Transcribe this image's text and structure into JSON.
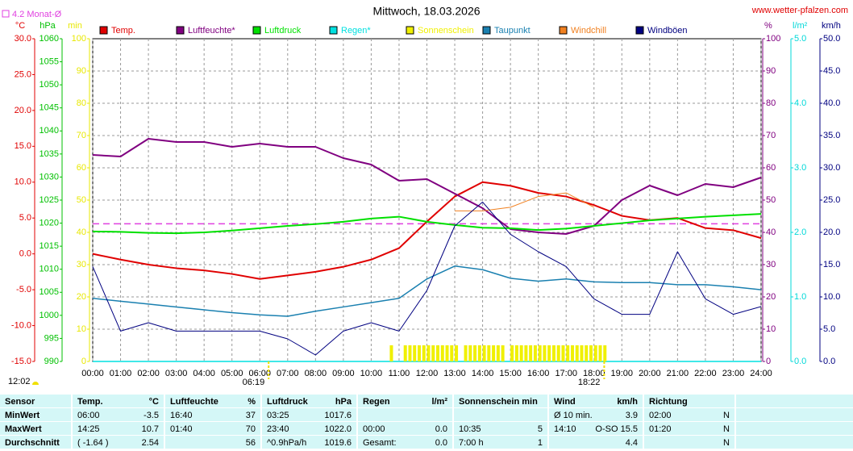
{
  "chart_data": {
    "type": "line",
    "title": "Mittwoch, 18.03.2026",
    "source": "www.wetter-pfalzen.com",
    "daylength": "12:02",
    "sunrise": {
      "value": 379,
      "label": "06:19"
    },
    "sunset": {
      "value": 1102,
      "label": "18:22"
    },
    "reference": {
      "value": 4.2,
      "label": "4.2 Monat-Ø",
      "color": "#e040e0",
      "axis": 0
    },
    "xlim": [
      0,
      1440
    ],
    "xticks": [
      {
        "value": 0,
        "label": "00:00"
      },
      {
        "value": 60,
        "label": "01:00"
      },
      {
        "value": 120,
        "label": "02:00"
      },
      {
        "value": 180,
        "label": "03:00"
      },
      {
        "value": 240,
        "label": "04:00"
      },
      {
        "value": 300,
        "label": "05:00"
      },
      {
        "value": 360,
        "label": "06:00"
      },
      {
        "value": 420,
        "label": "07:00"
      },
      {
        "value": 480,
        "label": "08:00"
      },
      {
        "value": 540,
        "label": "09:00"
      },
      {
        "value": 600,
        "label": "10:00"
      },
      {
        "value": 660,
        "label": "11:00"
      },
      {
        "value": 720,
        "label": "12:00"
      },
      {
        "value": 780,
        "label": "13:00"
      },
      {
        "value": 840,
        "label": "14:00"
      },
      {
        "value": 900,
        "label": "15:00"
      },
      {
        "value": 960,
        "label": "16:00"
      },
      {
        "value": 1020,
        "label": "17:00"
      },
      {
        "value": 1080,
        "label": "18:00"
      },
      {
        "value": 1140,
        "label": "19:00"
      },
      {
        "value": 1200,
        "label": "20:00"
      },
      {
        "value": 1260,
        "label": "21:00"
      },
      {
        "value": 1320,
        "label": "22:00"
      },
      {
        "value": 1380,
        "label": "23:00"
      },
      {
        "value": 1440,
        "label": "24:00"
      }
    ],
    "grid": true,
    "axes": [
      {
        "label": "°C",
        "color": "#e00000",
        "lim": [
          -15,
          30
        ],
        "ticks": [
          {
            "value": -15,
            "label": "-15.0"
          },
          {
            "value": -10,
            "label": "-10.0"
          },
          {
            "value": -5,
            "label": "-5.0"
          },
          {
            "value": 0,
            "label": "0.0"
          },
          {
            "value": 5,
            "label": "5.0"
          },
          {
            "value": 10,
            "label": "10.0"
          },
          {
            "value": 15,
            "label": "15.0"
          },
          {
            "value": 20,
            "label": "20.0"
          },
          {
            "value": 25,
            "label": "25.0"
          },
          {
            "value": 30,
            "label": "30.0"
          }
        ]
      },
      {
        "label": "hPa",
        "color": "#00c000",
        "lim": [
          990,
          1060
        ],
        "ticks": [
          990,
          995,
          1000,
          1005,
          1010,
          1015,
          1020,
          1025,
          1030,
          1035,
          1040,
          1045,
          1050,
          1055,
          1060
        ]
      },
      {
        "label": "min",
        "color": "#e8e800",
        "lim": [
          0,
          100
        ],
        "ticks": [
          0,
          10,
          20,
          30,
          40,
          50,
          60,
          70,
          80,
          90,
          100
        ],
        "grid": true
      },
      {
        "label": "%",
        "color": "#800080",
        "lim": [
          0,
          100
        ],
        "ticks": [
          0,
          10,
          20,
          30,
          40,
          50,
          60,
          70,
          80,
          90,
          100
        ]
      },
      {
        "label": "l/m²",
        "color": "#00d8d8",
        "lim": [
          0,
          5
        ],
        "ticks": [
          {
            "value": 0,
            "label": "0.0"
          },
          {
            "value": 1,
            "label": "1.0"
          },
          {
            "value": 2,
            "label": "2.0"
          },
          {
            "value": 3,
            "label": "3.0"
          },
          {
            "value": 4,
            "label": "4.0"
          },
          {
            "value": 5,
            "label": "5.0"
          }
        ]
      },
      {
        "label": "km/h",
        "color": "#000080",
        "lim": [
          0,
          50
        ],
        "ticks": [
          {
            "value": 0,
            "label": "0.0"
          },
          {
            "value": 5,
            "label": "5.0"
          },
          {
            "value": 10,
            "label": "10.0"
          },
          {
            "value": 15,
            "label": "15.0"
          },
          {
            "value": 20,
            "label": "20.0"
          },
          {
            "value": 25,
            "label": "25.0"
          },
          {
            "value": 30,
            "label": "30.0"
          },
          {
            "value": 35,
            "label": "35.0"
          },
          {
            "value": 40,
            "label": "40.0"
          },
          {
            "value": 45,
            "label": "45.0"
          },
          {
            "value": 50,
            "label": "50.0"
          }
        ]
      }
    ],
    "x": [
      0,
      60,
      120,
      180,
      240,
      300,
      360,
      420,
      480,
      540,
      600,
      660,
      720,
      780,
      840,
      900,
      960,
      1020,
      1080,
      1140,
      1200,
      1260,
      1320,
      1380,
      1440
    ],
    "series": [
      {
        "name": "Temp.",
        "color": "#e00000",
        "axis": 0,
        "values": [
          0,
          -0.8,
          -1.5,
          -2,
          -2.3,
          -2.8,
          -3.5,
          -3,
          -2.5,
          -1.8,
          -0.8,
          0.8,
          4.5,
          8,
          10,
          9.5,
          8.5,
          8,
          6.8,
          5.3,
          4.7,
          5,
          3.6,
          3.3,
          2.2
        ]
      },
      {
        "name": "Luftfeuchte*",
        "color": "#800080",
        "axis": 3,
        "values": [
          64,
          63.5,
          69,
          68,
          68,
          66.5,
          67.5,
          66.5,
          66.5,
          63,
          61,
          56,
          56.5,
          52,
          47.5,
          41,
          40,
          39.5,
          42,
          50,
          54.5,
          51.5,
          55,
          54,
          57
        ]
      },
      {
        "name": "Luftdruck",
        "color": "#00e000",
        "axis": 1,
        "values": [
          1018.2,
          1018.1,
          1017.9,
          1017.8,
          1018,
          1018.4,
          1018.9,
          1019.4,
          1019.8,
          1020.3,
          1021,
          1021.4,
          1020.3,
          1019.6,
          1019,
          1018.9,
          1018.5,
          1018.8,
          1019.4,
          1020,
          1020.6,
          1021,
          1021.4,
          1021.7,
          1022
        ]
      },
      {
        "name": "Regen*",
        "color": "#00e0e0",
        "axis": 4,
        "values": [
          0,
          0,
          0,
          0,
          0,
          0,
          0,
          0,
          0,
          0,
          0,
          0,
          0,
          0,
          0,
          0,
          0,
          0,
          0,
          0,
          0,
          0,
          0,
          0,
          0
        ]
      },
      {
        "name": "Sonnenschein",
        "color": "#f0f000",
        "axis": 2,
        "kind": "bar",
        "x": [
          640,
          650,
          660,
          670,
          680,
          690,
          700,
          710,
          720,
          730,
          740,
          750,
          760,
          770,
          780,
          790,
          800,
          810,
          820,
          830,
          840,
          850,
          860,
          870,
          880,
          890,
          900,
          910,
          920,
          930,
          940,
          950,
          960,
          970,
          980,
          990,
          1000,
          1010,
          1020,
          1030,
          1040,
          1050,
          1060,
          1070,
          1080,
          1090,
          1100
        ],
        "values": [
          5,
          0,
          0,
          5,
          5,
          5,
          5,
          5,
          5,
          5,
          5,
          5,
          5,
          5,
          5,
          0,
          5,
          5,
          5,
          5,
          5,
          5,
          5,
          5,
          5,
          0,
          5,
          5,
          5,
          5,
          5,
          5,
          5,
          5,
          5,
          5,
          5,
          5,
          5,
          5,
          5,
          5,
          5,
          5,
          5,
          5,
          5
        ]
      },
      {
        "name": "Taupunkt",
        "color": "#1a80b0",
        "axis": 0,
        "values": [
          -6.2,
          -6.6,
          -7,
          -7.4,
          -7.8,
          -8.2,
          -8.5,
          -8.7,
          -8,
          -7.4,
          -6.8,
          -6.2,
          -3.5,
          -1.7,
          -2.2,
          -3.4,
          -3.8,
          -3.5,
          -3.9,
          -4,
          -4,
          -4.3,
          -4.3,
          -4.6,
          -5
        ]
      },
      {
        "name": "Windchill",
        "color": "#f08020",
        "axis": 0,
        "values": [
          null,
          null,
          null,
          null,
          null,
          null,
          null,
          null,
          null,
          null,
          null,
          null,
          null,
          6,
          6,
          6.5,
          8,
          8.5,
          6.5,
          null,
          null,
          null,
          null,
          null,
          null
        ]
      },
      {
        "name": "Windböen",
        "color": "#000080",
        "axis": 5,
        "values": [
          14.7,
          4.7,
          6,
          4.7,
          4.7,
          4.7,
          4.7,
          3.5,
          1,
          4.7,
          6,
          4.7,
          11,
          21,
          24.7,
          19.7,
          17,
          14.7,
          9.7,
          7.3,
          7.3,
          17,
          9.7,
          7.3,
          8.5
        ]
      }
    ]
  },
  "table": {
    "header": [
      {
        "left": "Sensor"
      },
      {
        "left": "Temp.",
        "right": "°C"
      },
      {
        "left": "Luftfeuchte",
        "right": "%"
      },
      {
        "left": "Luftdruck",
        "right": "hPa"
      },
      {
        "left": "Regen",
        "right": "l/m²"
      },
      {
        "left": "Sonnenschein min"
      },
      {
        "left": "Wind",
        "right": "km/h"
      },
      {
        "left": "Richtung"
      }
    ],
    "rows": [
      [
        {
          "left": "MinWert"
        },
        {
          "left": "06:00",
          "right": "-3.5"
        },
        {
          "left": "16:40",
          "right": "37"
        },
        {
          "left": "03:25",
          "right": "1017.6"
        },
        {},
        {},
        {
          "left": "Ø 10 min.",
          "right": "3.9"
        },
        {
          "left": "02:00",
          "right": "N"
        }
      ],
      [
        {
          "left": "MaxWert"
        },
        {
          "left": "14:25",
          "right": "10.7"
        },
        {
          "left": "01:40",
          "right": "70"
        },
        {
          "left": "23:40",
          "right": "1022.0"
        },
        {
          "left": "00:00",
          "right": "0.0"
        },
        {
          "left": "10:35",
          "right": "5"
        },
        {
          "left": "14:10",
          "right": "O-SO 15.5"
        },
        {
          "left": "01:20",
          "right": "N"
        }
      ],
      [
        {
          "left": "Durchschnitt"
        },
        {
          "left": "( -1.64 )",
          "right": "2.54"
        },
        {
          "right": "56"
        },
        {
          "left": "^0.9hPa/h",
          "right": "1019.6"
        },
        {
          "left": "Gesamt:",
          "right": "0.0"
        },
        {
          "left": "7:00 h",
          "right": "1"
        },
        {
          "right": "4.4"
        },
        {
          "right": "N"
        }
      ]
    ]
  }
}
